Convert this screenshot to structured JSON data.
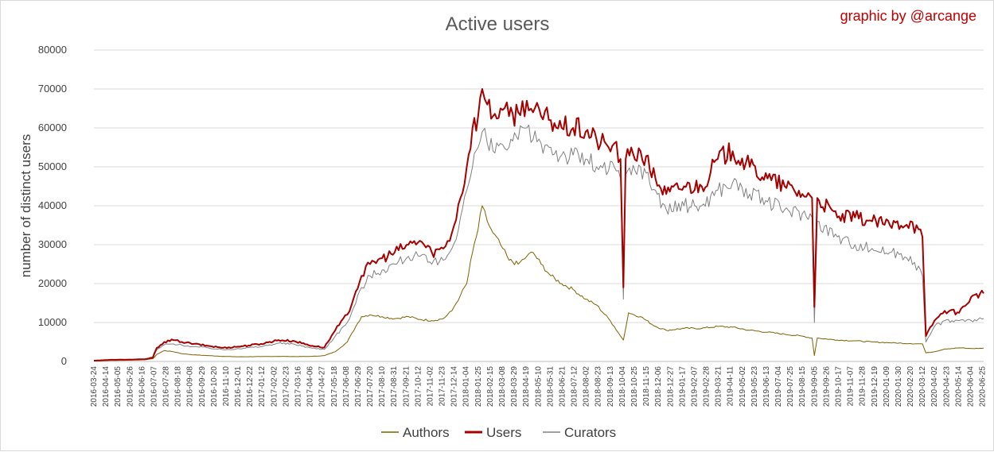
{
  "chart_data": {
    "type": "line",
    "title": "Active users",
    "credit": "graphic by @arcange",
    "ylabel": "number of distinct users",
    "xlabel": "",
    "ylim": [
      0,
      80000
    ],
    "yticks": [
      "0",
      "10000",
      "20000",
      "30000",
      "40000",
      "50000",
      "60000",
      "70000",
      "80000"
    ],
    "x_start": "2016-03-24",
    "x_end": "2020-06-27",
    "legend_position": "bottom",
    "grid": "horizontal",
    "xtick_labels": [
      "2016-03-24",
      "2016-04-14",
      "2016-05-05",
      "2016-05-26",
      "2016-06-16",
      "2016-07-07",
      "2016-07-28",
      "2016-08-18",
      "2016-09-08",
      "2016-09-29",
      "2016-10-20",
      "2016-11-10",
      "2016-12-01",
      "2016-12-22",
      "2017-01-12",
      "2017-02-02",
      "2017-02-23",
      "2017-03-16",
      "2017-04-06",
      "2017-04-27",
      "2017-05-18",
      "2017-06-08",
      "2017-06-29",
      "2017-07-20",
      "2017-08-10",
      "2017-08-31",
      "2017-09-21",
      "2017-10-12",
      "2017-11-02",
      "2017-11-23",
      "2017-12-14",
      "2018-01-04",
      "2018-01-25",
      "2018-02-15",
      "2018-03-08",
      "2018-03-29",
      "2018-04-19",
      "2018-05-10",
      "2018-05-31",
      "2018-06-21",
      "2018-07-12",
      "2018-08-02",
      "2018-08-23",
      "2018-09-13",
      "2018-10-04",
      "2018-10-25",
      "2018-11-15",
      "2018-12-06",
      "2018-12-27",
      "2019-01-17",
      "2019-02-07",
      "2019-02-28",
      "2019-03-21",
      "2019-04-11",
      "2019-05-02",
      "2019-05-23",
      "2019-06-13",
      "2019-07-04",
      "2019-07-25",
      "2019-08-15",
      "2019-09-05",
      "2019-09-26",
      "2019-10-17",
      "2019-11-07",
      "2019-11-28",
      "2019-12-19",
      "2020-01-09",
      "2020-01-30",
      "2020-02-20",
      "2020-03-12",
      "2020-04-02",
      "2020-04-23",
      "2020-05-14",
      "2020-06-04",
      "2020-06-25"
    ],
    "series": [
      {
        "name": "Authors",
        "color": "#7f6000",
        "values": [
          [
            "2016-03-24",
            100
          ],
          [
            "2016-04-20",
            250
          ],
          [
            "2016-05-20",
            300
          ],
          [
            "2016-06-20",
            400
          ],
          [
            "2016-07-05",
            700
          ],
          [
            "2016-07-12",
            1800
          ],
          [
            "2016-07-25",
            2800
          ],
          [
            "2016-08-10",
            2500
          ],
          [
            "2016-08-25",
            2000
          ],
          [
            "2016-09-15",
            1700
          ],
          [
            "2016-10-10",
            1500
          ],
          [
            "2016-11-05",
            1300
          ],
          [
            "2016-12-01",
            1200
          ],
          [
            "2017-01-10",
            1250
          ],
          [
            "2017-02-10",
            1300
          ],
          [
            "2017-03-10",
            1250
          ],
          [
            "2017-04-10",
            1300
          ],
          [
            "2017-05-01",
            1500
          ],
          [
            "2017-05-20",
            2500
          ],
          [
            "2017-06-10",
            5000
          ],
          [
            "2017-06-25",
            9000
          ],
          [
            "2017-07-05",
            11500
          ],
          [
            "2017-07-20",
            12000
          ],
          [
            "2017-08-10",
            11500
          ],
          [
            "2017-09-01",
            11000
          ],
          [
            "2017-09-25",
            11500
          ],
          [
            "2017-10-15",
            10800
          ],
          [
            "2017-11-05",
            10500
          ],
          [
            "2017-11-25",
            11000
          ],
          [
            "2017-12-10",
            13000
          ],
          [
            "2017-12-25",
            17000
          ],
          [
            "2018-01-05",
            20000
          ],
          [
            "2018-01-15",
            28000
          ],
          [
            "2018-01-25",
            34000
          ],
          [
            "2018-02-01",
            40000
          ],
          [
            "2018-02-10",
            36000
          ],
          [
            "2018-02-20",
            33000
          ],
          [
            "2018-03-05",
            30000
          ],
          [
            "2018-03-20",
            26000
          ],
          [
            "2018-04-05",
            25000
          ],
          [
            "2018-04-20",
            27000
          ],
          [
            "2018-05-01",
            28000
          ],
          [
            "2018-05-15",
            25000
          ],
          [
            "2018-06-01",
            22000
          ],
          [
            "2018-06-20",
            20000
          ],
          [
            "2018-07-10",
            18500
          ],
          [
            "2018-08-01",
            16000
          ],
          [
            "2018-08-20",
            14500
          ],
          [
            "2018-09-10",
            11000
          ],
          [
            "2018-09-20",
            9000
          ],
          [
            "2018-10-01",
            6500
          ],
          [
            "2018-10-06",
            5500
          ],
          [
            "2018-10-15",
            12500
          ],
          [
            "2018-11-05",
            11500
          ],
          [
            "2018-12-01",
            9000
          ],
          [
            "2018-12-20",
            8000
          ],
          [
            "2019-01-20",
            8500
          ],
          [
            "2019-02-20",
            8500
          ],
          [
            "2019-03-20",
            9000
          ],
          [
            "2019-04-15",
            8800
          ],
          [
            "2019-05-15",
            8000
          ],
          [
            "2019-06-15",
            7500
          ],
          [
            "2019-07-15",
            7000
          ],
          [
            "2019-08-15",
            6500
          ],
          [
            "2019-09-01",
            6000
          ],
          [
            "2019-09-05",
            1500
          ],
          [
            "2019-09-10",
            6000
          ],
          [
            "2019-10-15",
            5500
          ],
          [
            "2019-11-15",
            5300
          ],
          [
            "2019-12-15",
            5000
          ],
          [
            "2020-01-15",
            4800
          ],
          [
            "2020-02-20",
            4600
          ],
          [
            "2020-03-12",
            4500
          ],
          [
            "2020-03-18",
            2200
          ],
          [
            "2020-04-02",
            2500
          ],
          [
            "2020-04-20",
            3200
          ],
          [
            "2020-05-15",
            3500
          ],
          [
            "2020-06-05",
            3300
          ],
          [
            "2020-06-27",
            3400
          ]
        ]
      },
      {
        "name": "Users",
        "color": "#a50000",
        "values": [
          [
            "2016-03-24",
            200
          ],
          [
            "2016-04-20",
            400
          ],
          [
            "2016-05-20",
            450
          ],
          [
            "2016-06-20",
            550
          ],
          [
            "2016-07-05",
            1000
          ],
          [
            "2016-07-12",
            3500
          ],
          [
            "2016-07-25",
            5000
          ],
          [
            "2016-08-10",
            5500
          ],
          [
            "2016-08-25",
            5000
          ],
          [
            "2016-09-15",
            4500
          ],
          [
            "2016-10-10",
            4000
          ],
          [
            "2016-11-05",
            3500
          ],
          [
            "2016-12-01",
            3800
          ],
          [
            "2017-01-10",
            4500
          ],
          [
            "2017-02-10",
            5500
          ],
          [
            "2017-03-10",
            5200
          ],
          [
            "2017-04-10",
            4000
          ],
          [
            "2017-05-01",
            3600
          ],
          [
            "2017-05-20",
            8000
          ],
          [
            "2017-06-10",
            12000
          ],
          [
            "2017-06-25",
            18000
          ],
          [
            "2017-07-05",
            22000
          ],
          [
            "2017-07-20",
            25000
          ],
          [
            "2017-08-10",
            26500
          ],
          [
            "2017-09-01",
            28000
          ],
          [
            "2017-09-25",
            30000
          ],
          [
            "2017-10-15",
            31000
          ],
          [
            "2017-11-05",
            28000
          ],
          [
            "2017-11-25",
            29000
          ],
          [
            "2017-12-10",
            33000
          ],
          [
            "2017-12-25",
            42000
          ],
          [
            "2018-01-05",
            50000
          ],
          [
            "2018-01-15",
            60000
          ],
          [
            "2018-01-25",
            63000
          ],
          [
            "2018-02-01",
            70000
          ],
          [
            "2018-02-10",
            66000
          ],
          [
            "2018-02-20",
            63000
          ],
          [
            "2018-03-05",
            65000
          ],
          [
            "2018-03-20",
            63000
          ],
          [
            "2018-04-05",
            64000
          ],
          [
            "2018-04-20",
            67000
          ],
          [
            "2018-05-01",
            64000
          ],
          [
            "2018-05-15",
            63000
          ],
          [
            "2018-06-01",
            62000
          ],
          [
            "2018-06-20",
            60000
          ],
          [
            "2018-07-10",
            60000
          ],
          [
            "2018-08-01",
            59000
          ],
          [
            "2018-08-20",
            57000
          ],
          [
            "2018-09-10",
            55000
          ],
          [
            "2018-09-20",
            56000
          ],
          [
            "2018-10-01",
            52000
          ],
          [
            "2018-10-06",
            19000
          ],
          [
            "2018-10-10",
            52000
          ],
          [
            "2018-11-05",
            54000
          ],
          [
            "2018-12-01",
            47000
          ],
          [
            "2018-12-20",
            43000
          ],
          [
            "2019-01-20",
            45000
          ],
          [
            "2019-02-20",
            45000
          ],
          [
            "2019-03-20",
            52000
          ],
          [
            "2019-04-15",
            54000
          ],
          [
            "2019-05-15",
            50000
          ],
          [
            "2019-06-15",
            47000
          ],
          [
            "2019-07-15",
            45000
          ],
          [
            "2019-08-15",
            43000
          ],
          [
            "2019-09-01",
            42000
          ],
          [
            "2019-09-05",
            14000
          ],
          [
            "2019-09-10",
            42000
          ],
          [
            "2019-10-15",
            37000
          ],
          [
            "2019-11-15",
            37000
          ],
          [
            "2019-12-15",
            36000
          ],
          [
            "2020-01-15",
            35000
          ],
          [
            "2020-02-20",
            36000
          ],
          [
            "2020-03-12",
            32000
          ],
          [
            "2020-03-18",
            6500
          ],
          [
            "2020-04-02",
            10500
          ],
          [
            "2020-04-20",
            13000
          ],
          [
            "2020-05-15",
            12500
          ],
          [
            "2020-06-05",
            16500
          ],
          [
            "2020-06-27",
            17500
          ]
        ]
      },
      {
        "name": "Curators",
        "color": "#808080",
        "values": [
          [
            "2016-03-24",
            150
          ],
          [
            "2016-04-20",
            300
          ],
          [
            "2016-05-20",
            350
          ],
          [
            "2016-06-20",
            450
          ],
          [
            "2016-07-05",
            800
          ],
          [
            "2016-07-12",
            3000
          ],
          [
            "2016-07-25",
            4300
          ],
          [
            "2016-08-10",
            4500
          ],
          [
            "2016-08-25",
            4200
          ],
          [
            "2016-09-15",
            3800
          ],
          [
            "2016-10-10",
            3500
          ],
          [
            "2016-11-05",
            3000
          ],
          [
            "2016-12-01",
            3300
          ],
          [
            "2017-01-10",
            3800
          ],
          [
            "2017-02-10",
            4700
          ],
          [
            "2017-03-10",
            4400
          ],
          [
            "2017-04-10",
            3400
          ],
          [
            "2017-05-01",
            3100
          ],
          [
            "2017-05-20",
            6500
          ],
          [
            "2017-06-10",
            10000
          ],
          [
            "2017-06-25",
            15000
          ],
          [
            "2017-07-05",
            19000
          ],
          [
            "2017-07-20",
            22000
          ],
          [
            "2017-08-10",
            23500
          ],
          [
            "2017-09-01",
            25000
          ],
          [
            "2017-09-25",
            27000
          ],
          [
            "2017-10-15",
            27000
          ],
          [
            "2017-11-05",
            25000
          ],
          [
            "2017-11-25",
            26000
          ],
          [
            "2017-12-10",
            29000
          ],
          [
            "2017-12-25",
            37000
          ],
          [
            "2018-01-05",
            44000
          ],
          [
            "2018-01-15",
            50000
          ],
          [
            "2018-01-25",
            55000
          ],
          [
            "2018-02-01",
            59000
          ],
          [
            "2018-02-10",
            56000
          ],
          [
            "2018-02-20",
            54000
          ],
          [
            "2018-03-05",
            56000
          ],
          [
            "2018-03-20",
            55000
          ],
          [
            "2018-04-05",
            57000
          ],
          [
            "2018-04-20",
            60000
          ],
          [
            "2018-05-01",
            57000
          ],
          [
            "2018-05-15",
            56000
          ],
          [
            "2018-06-01",
            55000
          ],
          [
            "2018-06-20",
            53000
          ],
          [
            "2018-07-10",
            53000
          ],
          [
            "2018-08-01",
            52000
          ],
          [
            "2018-08-20",
            50000
          ],
          [
            "2018-09-10",
            49000
          ],
          [
            "2018-09-20",
            50000
          ],
          [
            "2018-10-01",
            47000
          ],
          [
            "2018-10-06",
            16000
          ],
          [
            "2018-10-10",
            48000
          ],
          [
            "2018-11-05",
            50000
          ],
          [
            "2018-12-01",
            44000
          ],
          [
            "2018-12-20",
            39000
          ],
          [
            "2019-01-20",
            40000
          ],
          [
            "2019-02-20",
            40000
          ],
          [
            "2019-03-20",
            44000
          ],
          [
            "2019-04-15",
            46000
          ],
          [
            "2019-05-15",
            43000
          ],
          [
            "2019-06-15",
            41000
          ],
          [
            "2019-07-15",
            39000
          ],
          [
            "2019-08-15",
            38000
          ],
          [
            "2019-09-01",
            37000
          ],
          [
            "2019-09-05",
            10000
          ],
          [
            "2019-09-10",
            36000
          ],
          [
            "2019-10-15",
            32000
          ],
          [
            "2019-11-15",
            30000
          ],
          [
            "2019-12-15",
            29000
          ],
          [
            "2020-01-15",
            28000
          ],
          [
            "2020-02-20",
            27000
          ],
          [
            "2020-03-12",
            22000
          ],
          [
            "2020-03-18",
            5000
          ],
          [
            "2020-04-02",
            9000
          ],
          [
            "2020-04-20",
            10500
          ],
          [
            "2020-05-15",
            10500
          ],
          [
            "2020-06-05",
            10500
          ],
          [
            "2020-06-27",
            11000
          ]
        ]
      }
    ]
  }
}
